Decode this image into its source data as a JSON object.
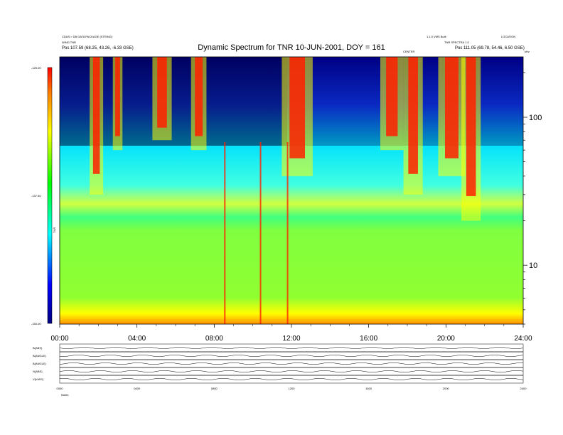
{
  "header": {
    "title": "Dynamic Spectrum for TNR 10-JUN-2001, DOY = 161",
    "left_line1": "CDAS > DB DATA PACKAGE (STRING)",
    "left_line2": "WIND TNR",
    "left_line3": "Pos    107.59 (68.25, 43.26, -6.33 GSE)",
    "right_line1": "1.1.0 VMS Built",
    "right_line2": "TNR SPECTRA 1.0",
    "right_line3": "Pos    111.05 (69.78, 54.46, 6.50 GSE)",
    "far_right": "LOCATION",
    "khz": "kHz",
    "center_label": "CENTER"
  },
  "chart_data": {
    "type": "heatmap",
    "title": "Dynamic Spectrum for TNR 10-JUN-2001, DOY = 161",
    "x_ticks": [
      "00:00",
      "04:00",
      "08:00",
      "12:00",
      "16:00",
      "20:00",
      "24:00"
    ],
    "x_range_hours": [
      0,
      24
    ],
    "y_scale": "log",
    "y_range_khz": [
      4,
      256
    ],
    "y_ticks": [
      "10",
      "100"
    ],
    "colorbar": {
      "label": "TNR",
      "ticks": [
        "-125.00",
        "-137.50",
        "-150.00"
      ],
      "range": [
        -150,
        -125
      ]
    },
    "bursts": [
      {
        "t": 1.9,
        "width": 0.35,
        "fmin": 30,
        "fmax": 256
      },
      {
        "t": 3.0,
        "width": 0.25,
        "fmin": 60,
        "fmax": 256
      },
      {
        "t": 5.3,
        "width": 0.5,
        "fmin": 70,
        "fmax": 256
      },
      {
        "t": 7.2,
        "width": 0.4,
        "fmin": 60,
        "fmax": 256
      },
      {
        "t": 12.3,
        "width": 0.8,
        "fmin": 40,
        "fmax": 256
      },
      {
        "t": 17.2,
        "width": 0.6,
        "fmin": 60,
        "fmax": 256
      },
      {
        "t": 18.3,
        "width": 0.5,
        "fmin": 30,
        "fmax": 256
      },
      {
        "t": 20.3,
        "width": 0.7,
        "fmin": 40,
        "fmax": 256
      },
      {
        "t": 21.3,
        "width": 0.5,
        "fmin": 20,
        "fmax": 256
      }
    ],
    "spikes": [
      {
        "t": 8.55
      },
      {
        "t": 10.4
      },
      {
        "t": 11.8
      }
    ],
    "panels": [
      {
        "label": "B(ABS)"
      },
      {
        "label": "B(ANGLE)"
      },
      {
        "label": "B(ANGLE)"
      },
      {
        "label": "N(ABS)"
      },
      {
        "label": "V(KM/S)"
      }
    ],
    "bottom_x_ticks": [
      "0000",
      "0400",
      "0800",
      "1200",
      "1600",
      "2000",
      "2400"
    ],
    "bottom_label": "Notes"
  }
}
